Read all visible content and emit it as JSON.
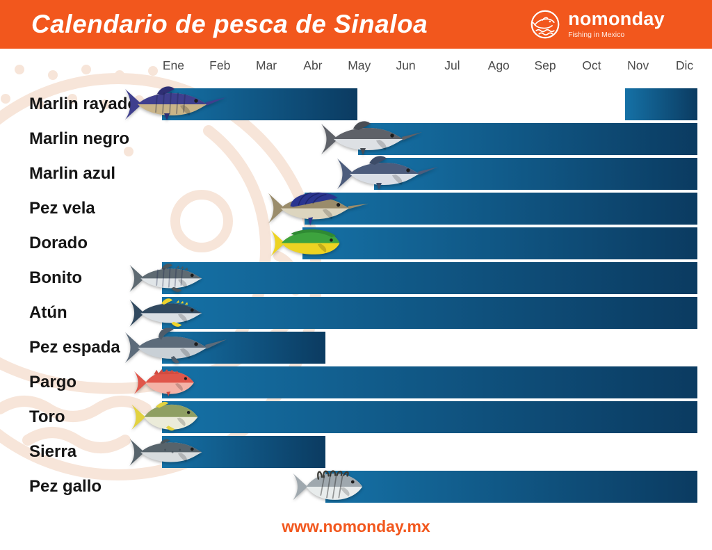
{
  "header": {
    "title": "Calendario de pesca de Sinaloa",
    "brand_name": "nomonday",
    "brand_tagline": "Fishing in Mexico"
  },
  "footer": {
    "url": "www.nomonday.mx"
  },
  "colors": {
    "banner_bg": "#F2571D",
    "bar_gradient_start": "#1571A6",
    "bar_gradient_end": "#0B3B61",
    "month_label": "#4A4A4A",
    "species_label": "#151515",
    "watermark": "#F7E5D9"
  },
  "chart_data": {
    "type": "bar",
    "subtype": "gantt-season-calendar",
    "orientation": "horizontal",
    "title": "Calendario de pesca de Sinaloa",
    "categories": [
      "Ene",
      "Feb",
      "Mar",
      "Abr",
      "May",
      "Jun",
      "Jul",
      "Ago",
      "Sep",
      "Oct",
      "Nov",
      "Dic"
    ],
    "x_range_months": [
      0,
      12
    ],
    "grid": false,
    "legend": false,
    "rows": [
      {
        "species": "Marlin rayado",
        "seasons": [
          {
            "start": 0,
            "end": 4.38
          },
          {
            "start": 10.38,
            "end": 12
          }
        ],
        "fish": {
          "shape": "marlin",
          "back": "#3F3F8E",
          "belly": "#C9B488",
          "fin": "#2F2F74",
          "stripes": true
        }
      },
      {
        "species": "Marlin negro",
        "seasons": [
          {
            "start": 4.4,
            "end": 12
          }
        ],
        "fish": {
          "shape": "marlin",
          "back": "#5E6168",
          "belly": "#DDE0E4",
          "fin": "#4A4D54"
        }
      },
      {
        "species": "Marlin azul",
        "seasons": [
          {
            "start": 4.75,
            "end": 12
          }
        ],
        "fish": {
          "shape": "marlin",
          "back": "#4C5C7C",
          "belly": "#D9DEE6",
          "fin": "#3D4C68"
        }
      },
      {
        "species": "Pez vela",
        "seasons": [
          {
            "start": 3.2,
            "end": 12
          }
        ],
        "fish": {
          "shape": "sailfish",
          "back": "#9A8C6B",
          "belly": "#DCD5BF",
          "fin": "#2A3590"
        }
      },
      {
        "species": "Dorado",
        "seasons": [
          {
            "start": 3.15,
            "end": 12
          }
        ],
        "fish": {
          "shape": "dorado",
          "back": "#3DA33E",
          "belly": "#EDD322",
          "fin": "#2F8A33",
          "tail": "#EDD322"
        }
      },
      {
        "species": "Bonito",
        "seasons": [
          {
            "start": 0,
            "end": 12
          }
        ],
        "fish": {
          "shape": "tuna",
          "back": "#5E6A72",
          "belly": "#E0E5E8",
          "fin": "#4C565C",
          "stripes": true
        }
      },
      {
        "species": "Atún",
        "seasons": [
          {
            "start": 0,
            "end": 12
          }
        ],
        "fish": {
          "shape": "tuna",
          "back": "#31495F",
          "belly": "#D9DFE4",
          "fin": "#EFD42C"
        }
      },
      {
        "species": "Pez espada",
        "seasons": [
          {
            "start": 0,
            "end": 3.66
          }
        ],
        "fish": {
          "shape": "swordfish",
          "back": "#5C6B7A",
          "belly": "#C9D0D6",
          "fin": "#4E5C6A"
        }
      },
      {
        "species": "Pargo",
        "seasons": [
          {
            "start": 0,
            "end": 12
          }
        ],
        "fish": {
          "shape": "snapper",
          "back": "#E0564A",
          "belly": "#F4B3A7",
          "fin": "#D24B3F"
        }
      },
      {
        "species": "Toro",
        "seasons": [
          {
            "start": 0,
            "end": 12
          }
        ],
        "fish": {
          "shape": "jack",
          "back": "#8F9F62",
          "belly": "#EBEBD9",
          "fin": "#E2D23F",
          "tail": "#E2D23F"
        }
      },
      {
        "species": "Sierra",
        "seasons": [
          {
            "start": 0,
            "end": 3.66
          }
        ],
        "fish": {
          "shape": "mackerel",
          "back": "#57636B",
          "belly": "#D8DCDE",
          "fin": "#49545B"
        }
      },
      {
        "species": "Pez gallo",
        "seasons": [
          {
            "start": 3.66,
            "end": 12
          }
        ],
        "fish": {
          "shape": "rooster",
          "back": "#9FA8AE",
          "belly": "#E8ECEC",
          "fin": "#3A3A35",
          "stripes": true
        }
      }
    ]
  }
}
